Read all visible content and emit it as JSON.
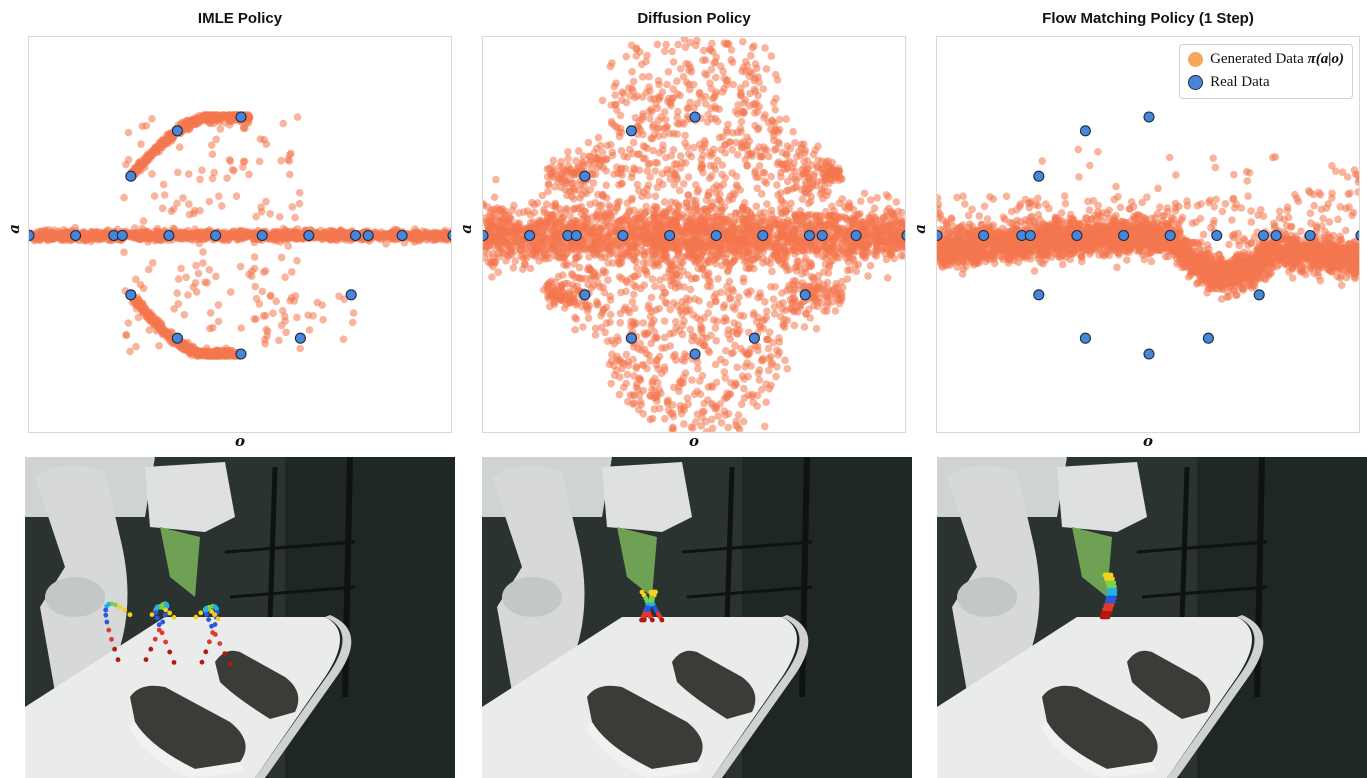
{
  "chart_data": [
    {
      "type": "scatter",
      "title": "IMLE Policy",
      "xlabel": "o",
      "ylabel": "a",
      "xlim": [
        0,
        1
      ],
      "ylim": [
        -1,
        1
      ],
      "grid": false,
      "series": [
        {
          "name": "Generated Data π(a|o)",
          "color": "#f4774e",
          "pattern": "imle"
        },
        {
          "name": "Real Data",
          "color": "#4a86d8",
          "x": [
            0.0,
            0.11,
            0.2,
            0.22,
            0.33,
            0.44,
            0.55,
            0.66,
            0.77,
            0.8,
            0.88,
            1.0,
            0.24,
            0.35,
            0.5,
            0.24,
            0.35,
            0.5,
            0.76,
            0.64
          ],
          "y": [
            0,
            0,
            0,
            0,
            0,
            0,
            0,
            0,
            0,
            0,
            0,
            0,
            0.3,
            0.53,
            0.6,
            -0.3,
            -0.52,
            -0.6,
            -0.3,
            -0.52
          ]
        }
      ]
    },
    {
      "type": "scatter",
      "title": "Diffusion Policy",
      "xlabel": "o",
      "ylabel": "a",
      "xlim": [
        0,
        1
      ],
      "ylim": [
        -1,
        1
      ],
      "grid": false,
      "series": [
        {
          "name": "Generated Data π(a|o)",
          "color": "#f4774e",
          "pattern": "diffusion"
        },
        {
          "name": "Real Data",
          "color": "#4a86d8",
          "x": [
            0.0,
            0.11,
            0.2,
            0.22,
            0.33,
            0.44,
            0.55,
            0.66,
            0.77,
            0.8,
            0.88,
            1.0,
            0.24,
            0.35,
            0.5,
            0.24,
            0.35,
            0.5,
            0.76,
            0.64
          ],
          "y": [
            0,
            0,
            0,
            0,
            0,
            0,
            0,
            0,
            0,
            0,
            0,
            0,
            0.3,
            0.53,
            0.6,
            -0.3,
            -0.52,
            -0.6,
            -0.3,
            -0.52
          ]
        }
      ]
    },
    {
      "type": "scatter",
      "title": "Flow Matching Policy (1 Step)",
      "xlabel": "o",
      "ylabel": "a",
      "xlim": [
        0,
        1
      ],
      "ylim": [
        -1,
        1
      ],
      "grid": false,
      "legend_position": "top-right",
      "series": [
        {
          "name": "Generated Data π(a|o)",
          "color": "#f4774e",
          "pattern": "flow"
        },
        {
          "name": "Real Data",
          "color": "#4a86d8",
          "x": [
            0.0,
            0.11,
            0.2,
            0.22,
            0.33,
            0.44,
            0.55,
            0.66,
            0.77,
            0.8,
            0.88,
            1.0,
            0.24,
            0.35,
            0.5,
            0.24,
            0.35,
            0.5,
            0.76,
            0.64
          ],
          "y": [
            0,
            0,
            0,
            0,
            0,
            0,
            0,
            0,
            0,
            0,
            0,
            0,
            0.3,
            0.53,
            0.6,
            -0.3,
            -0.52,
            -0.6,
            -0.3,
            -0.52
          ]
        }
      ]
    }
  ],
  "legend": {
    "generated_prefix": "Generated Data ",
    "generated_formula": "π(a|o)",
    "real": "Real Data"
  },
  "photos": [
    {
      "icon": "robot-arm-trajectory-photo",
      "trajectory": "wide-multimodal"
    },
    {
      "icon": "robot-arm-trajectory-photo",
      "trajectory": "compact"
    },
    {
      "icon": "robot-arm-trajectory-photo",
      "trajectory": "narrow"
    }
  ],
  "colors": {
    "generated": "#f4774e",
    "real": "#4a86d8",
    "real_edge": "#1a2a44"
  }
}
